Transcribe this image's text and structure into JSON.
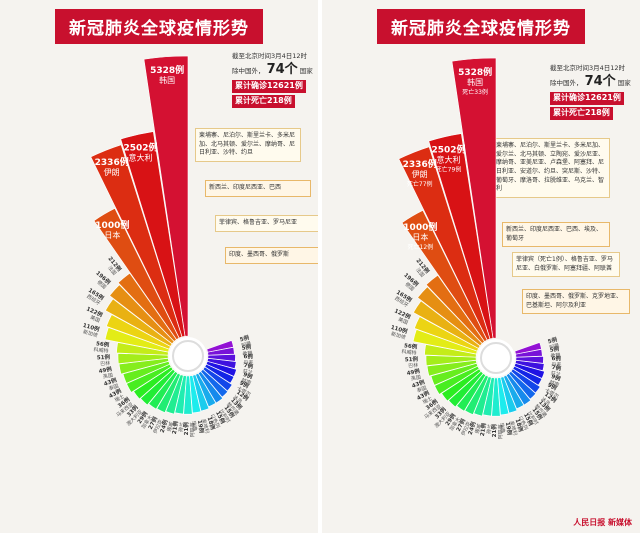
{
  "title": "新冠肺炎全球疫情形势",
  "deadline_text": "截至北京时间3月4日12时",
  "countries_prefix": "除中国外，",
  "countries_count": "74个",
  "countries_suffix": "国家",
  "confirmed_tag": "累计确诊12621例",
  "deaths_tag": "累计死亡218例",
  "left_notes": {
    "n1": "柬埔寨、尼泊尔、斯里兰卡、多米尼加、北马其顿、爱尔兰、摩纳哥、尼日利亚、沙特、约旦",
    "n2": "新西兰、印度尼西亚、巴西",
    "n3": "菲律宾、格鲁吉亚、罗马尼亚",
    "n4": "印度、墨西哥、俄罗斯"
  },
  "right_notes": {
    "n1": "柬埔寨、尼泊尔、斯里兰卡、多米尼加、爱尔兰、北马其顿、立陶宛、爱沙尼亚、摩纳哥、亚美尼亚、卢森堡、阿塞拜、尼日利亚、安道尔、约旦、突尼斯、沙特、葡萄牙、摩洛哥、拉脱维亚、乌克兰、智利",
    "n2": "新西兰、印度尼西亚、巴西、埃及、葡萄牙",
    "n3": "菲律宾（死亡1例）、格鲁吉亚、罗马尼亚、白俄罗斯、阿塞拜疆、阿联酋",
    "n4": "印度、墨西哥、俄罗斯、克罗地亚、巴基斯坦、阿尔及利亚"
  },
  "logo_text": "人民日报 新媒体",
  "chart_data": {
    "type": "bar",
    "subtype": "polar-rose",
    "title": "新冠肺炎全球疫情形势",
    "categories": [
      "韩国",
      "意大利",
      "伊朗",
      "日本",
      "法国",
      "德国",
      "西班牙",
      "美国",
      "新加坡",
      "科威特",
      "巴林",
      "英国",
      "泰国",
      "瑞士",
      "马来西亚",
      "澳大利亚",
      "加拿大",
      "伊拉克",
      "挪威",
      "荷兰",
      "阿联酋",
      "瑞典",
      "奥地利",
      "以色列",
      "比利时",
      "黎巴嫩",
      "冰岛",
      "卡塔尔",
      "越南",
      "芬兰",
      "丹麦",
      "希腊",
      "阿曼"
    ],
    "values": [
      5328,
      2502,
      2336,
      1000,
      212,
      196,
      165,
      122,
      110,
      56,
      51,
      49,
      43,
      43,
      36,
      33,
      29,
      27,
      24,
      21,
      21,
      19,
      18,
      15,
      15,
      13,
      12,
      9,
      9,
      7,
      6,
      5,
      5
    ],
    "value_labels": [
      "5328例",
      "2502例",
      "2336例",
      "1000例",
      "212例",
      "196例",
      "165例",
      "122例",
      "110例",
      "56例",
      "51例",
      "49例",
      "43例",
      "43例",
      "36例",
      "33例",
      "29例",
      "27例",
      "24例",
      "21例",
      "21例",
      "19例",
      "18例",
      "15例",
      "15例",
      "13例",
      "12例",
      "9例",
      "9例",
      "7例",
      "6例",
      "5例",
      "5例"
    ],
    "deaths_labels": [
      "死亡33例",
      "死亡79例",
      "死亡77例",
      "死亡12例",
      "",
      "",
      "",
      "",
      "",
      "",
      "",
      "",
      "",
      "",
      "",
      "",
      "",
      "",
      "",
      "",
      "",
      "",
      "",
      "",
      "",
      "",
      "",
      "",
      "",
      "",
      "",
      "",
      ""
    ]
  }
}
